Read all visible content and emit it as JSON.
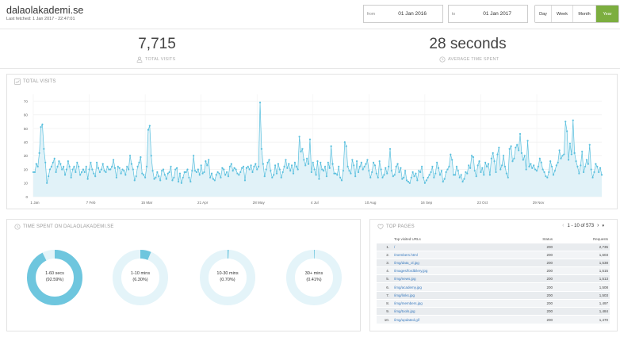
{
  "header": {
    "site_title": "dalaolakademi.se",
    "last_fetched": "Last fetched: 1 Jan 2017 - 22:47:01",
    "from_label": "from",
    "from_value": "01 Jan 2016",
    "to_label": "to",
    "to_value": "01 Jan 2017",
    "ranges": [
      "Day",
      "Week",
      "Month",
      "Year"
    ],
    "active_range": "Year"
  },
  "kpis": {
    "total_visits_value": "7,715",
    "total_visits_label": "TOTAL VISITS",
    "avg_time_value": "28 seconds",
    "avg_time_label": "AVERAGE TIME SPENT"
  },
  "visits_panel": {
    "title": "TOTAL VISITS"
  },
  "chart_data": {
    "type": "area",
    "title": "TOTAL VISITS",
    "ylim": [
      0,
      75
    ],
    "yticks": [
      0,
      10,
      20,
      30,
      40,
      50,
      60,
      70
    ],
    "xtick_labels": [
      "1 Jan",
      "7 Feb",
      "15 Mar",
      "21 Apr",
      "28 May",
      "4 Jul",
      "10 Aug",
      "16 Sep",
      "23 Oct",
      "29 Nov"
    ],
    "xtick_days": [
      0,
      37,
      74,
      111,
      148,
      185,
      222,
      259,
      296,
      333
    ],
    "grid": true,
    "color": "#5bc0de",
    "values": [
      18,
      18,
      24,
      22,
      32,
      51,
      53,
      35,
      25,
      10,
      15,
      20,
      22,
      25,
      28,
      18,
      22,
      26,
      24,
      20,
      22,
      16,
      20,
      26,
      22,
      14,
      20,
      22,
      18,
      25,
      22,
      16,
      18,
      20,
      18,
      22,
      13,
      20,
      25,
      20,
      17,
      15,
      25,
      21,
      18,
      20,
      24,
      19,
      18,
      22,
      20,
      20,
      22,
      27,
      21,
      14,
      22,
      21,
      17,
      20,
      19,
      16,
      22,
      20,
      30,
      24,
      20,
      12,
      15,
      22,
      25,
      29,
      17,
      16,
      14,
      22,
      49,
      52,
      30,
      19,
      13,
      14,
      18,
      15,
      12,
      19,
      20,
      16,
      13,
      17,
      18,
      22,
      12,
      14,
      20,
      21,
      11,
      17,
      10,
      14,
      18,
      18,
      20,
      14,
      11,
      19,
      30,
      19,
      18,
      20,
      16,
      23,
      17,
      18,
      26,
      23,
      27,
      14,
      17,
      13,
      12,
      16,
      18,
      17,
      14,
      21,
      20,
      16,
      18,
      15,
      22,
      24,
      19,
      21,
      20,
      17,
      16,
      18,
      21,
      22,
      12,
      21,
      22,
      20,
      23,
      18,
      22,
      24,
      20,
      22,
      69,
      35,
      24,
      15,
      20,
      25,
      27,
      19,
      14,
      16,
      23,
      17,
      24,
      20,
      14,
      18,
      22,
      27,
      21,
      24,
      19,
      23,
      17,
      25,
      22,
      20,
      44,
      33,
      35,
      27,
      23,
      28,
      24,
      42,
      18,
      25,
      20,
      16,
      26,
      13,
      25,
      20,
      19,
      22,
      15,
      25,
      21,
      37,
      24,
      17,
      17,
      16,
      22,
      14,
      12,
      19,
      40,
      37,
      22,
      19,
      17,
      27,
      23,
      15,
      26,
      18,
      22,
      25,
      20,
      22,
      24,
      27,
      19,
      14,
      18,
      25,
      23,
      17,
      14,
      26,
      20,
      14,
      16,
      21,
      17,
      22,
      35,
      19,
      15,
      16,
      22,
      24,
      18,
      21,
      13,
      14,
      19,
      12,
      11,
      10,
      14,
      18,
      15,
      17,
      12,
      19,
      18,
      22,
      14,
      10,
      12,
      14,
      16,
      18,
      22,
      14,
      17,
      25,
      21,
      16,
      19,
      11,
      13,
      18,
      20,
      22,
      31,
      27,
      16,
      16,
      22,
      19,
      14,
      16,
      11,
      13,
      18,
      17,
      23,
      21,
      30,
      29,
      19,
      15,
      23,
      26,
      18,
      21,
      16,
      25,
      22,
      24,
      16,
      28,
      32,
      26,
      18,
      31,
      36,
      20,
      23,
      30,
      22,
      17,
      14,
      35,
      37,
      26,
      28,
      36,
      38,
      34,
      46,
      32,
      27,
      30,
      20,
      41,
      22,
      24,
      21,
      23,
      20,
      19,
      22,
      28,
      25,
      20,
      18,
      15,
      14,
      18,
      26,
      22,
      16,
      19,
      23,
      25,
      34,
      28,
      30,
      31,
      55,
      48,
      27,
      39,
      31,
      56,
      32,
      26,
      22,
      17,
      23,
      33,
      18,
      22,
      27,
      24,
      38,
      20,
      14,
      18,
      24,
      22,
      18,
      21,
      16
    ]
  },
  "time_spent_panel": {
    "title": "TIME SPENT ON DALAOLAKADEMI.SE",
    "donuts": [
      {
        "label": "1-60 secs",
        "pct_text": "(92.59%)",
        "value": 92.59
      },
      {
        "label": "1-10 mins",
        "pct_text": "(6.30%)",
        "value": 6.3
      },
      {
        "label": "10-30 mins",
        "pct_text": "(0.70%)",
        "value": 0.7
      },
      {
        "label": "30+ mins",
        "pct_text": "(0.41%)",
        "value": 0.41
      }
    ]
  },
  "top_pages": {
    "title": "TOP PAGES",
    "pager_text": "1 - 10 of 573",
    "columns": {
      "url": "Top visited URLs",
      "status": "Status",
      "requests": "Requests"
    },
    "rows": [
      {
        "idx": "1.",
        "url": "/",
        "status": "200",
        "requests": "2,735"
      },
      {
        "idx": "2.",
        "url": "/members.html",
        "status": "200",
        "requests": "1,603"
      },
      {
        "idx": "3.",
        "url": "/img/data_ol.jpg",
        "status": "200",
        "requests": "1,538"
      },
      {
        "idx": "4.",
        "url": "/images/fordbilery.jpg",
        "status": "200",
        "requests": "1,515"
      },
      {
        "idx": "5.",
        "url": "/img/news.jpg",
        "status": "200",
        "requests": "1,513"
      },
      {
        "idx": "6.",
        "url": "/img/academy.jpg",
        "status": "200",
        "requests": "1,508"
      },
      {
        "idx": "7.",
        "url": "/img/links.jpg",
        "status": "200",
        "requests": "1,503"
      },
      {
        "idx": "8.",
        "url": "/img/members.jpg",
        "status": "200",
        "requests": "1,497"
      },
      {
        "idx": "9.",
        "url": "/img/tools.jpg",
        "status": "200",
        "requests": "1,484"
      },
      {
        "idx": "10.",
        "url": "/img/updated.gif",
        "status": "200",
        "requests": "1,470"
      }
    ]
  }
}
